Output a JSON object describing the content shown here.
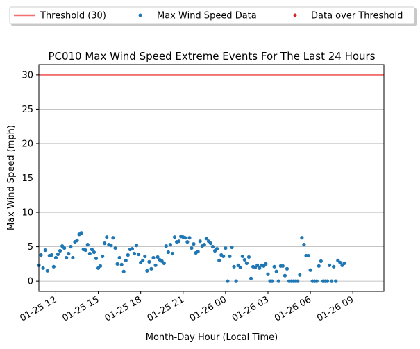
{
  "chart_data": {
    "type": "scatter",
    "title": "PC010 Max Wind Speed Extreme Events For The Last 24 Hours",
    "xlabel": "Month-Day Hour (Local Time)",
    "ylabel": "Max Wind Speed (mph)",
    "x_unit": "hours",
    "x_range": [
      10.8,
      35.2
    ],
    "ylim": [
      -1.5,
      31.5
    ],
    "xtick_hours": [
      12,
      15,
      18,
      21,
      24,
      27,
      30,
      33
    ],
    "xtick_labels": [
      "01-25 12",
      "01-25 15",
      "01-25 18",
      "01-25 21",
      "01-26 00",
      "01-26 03",
      "01-26 06",
      "01-26 09"
    ],
    "ytick_values": [
      0,
      5,
      10,
      15,
      20,
      25,
      30
    ],
    "ytick_labels": [
      "0",
      "5",
      "10",
      "15",
      "20",
      "25",
      "30"
    ],
    "grid": "horizontal",
    "legend_position": "top",
    "threshold": {
      "name": "Threshold (30)",
      "value": 30,
      "color": "#f07070"
    },
    "series": [
      {
        "name": "Max Wind Speed Data",
        "color": "#1f77b4",
        "points": [
          [
            10.8,
            2.3
          ],
          [
            10.95,
            3.8
          ],
          [
            11.1,
            1.9
          ],
          [
            11.25,
            4.5
          ],
          [
            11.4,
            1.5
          ],
          [
            11.55,
            3.7
          ],
          [
            11.7,
            3.8
          ],
          [
            11.85,
            2.1
          ],
          [
            12.0,
            3.4
          ],
          [
            12.15,
            3.9
          ],
          [
            12.3,
            4.4
          ],
          [
            12.45,
            5.1
          ],
          [
            12.6,
            4.8
          ],
          [
            12.75,
            3.4
          ],
          [
            12.9,
            4.0
          ],
          [
            13.05,
            5.0
          ],
          [
            13.2,
            3.4
          ],
          [
            13.35,
            5.7
          ],
          [
            13.5,
            5.9
          ],
          [
            13.65,
            6.8
          ],
          [
            13.8,
            7.0
          ],
          [
            13.95,
            4.6
          ],
          [
            14.1,
            4.5
          ],
          [
            14.25,
            5.3
          ],
          [
            14.4,
            4.0
          ],
          [
            14.55,
            4.6
          ],
          [
            14.7,
            4.2
          ],
          [
            14.85,
            3.3
          ],
          [
            15.0,
            1.9
          ],
          [
            15.15,
            2.2
          ],
          [
            15.3,
            3.6
          ],
          [
            15.45,
            5.5
          ],
          [
            15.6,
            6.4
          ],
          [
            15.75,
            5.3
          ],
          [
            15.9,
            5.2
          ],
          [
            16.05,
            6.3
          ],
          [
            16.2,
            4.8
          ],
          [
            16.35,
            2.5
          ],
          [
            16.5,
            3.4
          ],
          [
            16.65,
            2.4
          ],
          [
            16.8,
            1.4
          ],
          [
            16.95,
            3.0
          ],
          [
            17.1,
            3.8
          ],
          [
            17.25,
            4.6
          ],
          [
            17.4,
            4.7
          ],
          [
            17.55,
            4.0
          ],
          [
            17.7,
            5.2
          ],
          [
            17.85,
            3.9
          ],
          [
            18.0,
            2.7
          ],
          [
            18.15,
            3.0
          ],
          [
            18.3,
            3.6
          ],
          [
            18.45,
            1.5
          ],
          [
            18.6,
            2.8
          ],
          [
            18.75,
            1.8
          ],
          [
            18.9,
            3.4
          ],
          [
            19.05,
            2.3
          ],
          [
            19.2,
            3.5
          ],
          [
            19.35,
            3.1
          ],
          [
            19.5,
            2.9
          ],
          [
            19.65,
            2.6
          ],
          [
            19.8,
            5.1
          ],
          [
            19.95,
            4.2
          ],
          [
            20.1,
            5.3
          ],
          [
            20.25,
            4.0
          ],
          [
            20.4,
            6.4
          ],
          [
            20.55,
            5.7
          ],
          [
            20.7,
            5.8
          ],
          [
            20.85,
            6.5
          ],
          [
            21.0,
            6.4
          ],
          [
            21.15,
            6.3
          ],
          [
            21.3,
            5.7
          ],
          [
            21.45,
            6.3
          ],
          [
            21.6,
            4.8
          ],
          [
            21.75,
            5.4
          ],
          [
            21.9,
            4.1
          ],
          [
            22.05,
            4.3
          ],
          [
            22.2,
            5.8
          ],
          [
            22.35,
            5.1
          ],
          [
            22.5,
            5.3
          ],
          [
            22.65,
            6.2
          ],
          [
            22.8,
            5.8
          ],
          [
            22.95,
            5.5
          ],
          [
            23.1,
            5.0
          ],
          [
            23.25,
            4.4
          ],
          [
            23.4,
            4.7
          ],
          [
            23.55,
            3.0
          ],
          [
            23.7,
            3.8
          ],
          [
            23.85,
            3.6
          ],
          [
            24.0,
            4.8
          ],
          [
            24.15,
            0.0
          ],
          [
            24.3,
            3.6
          ],
          [
            24.45,
            4.9
          ],
          [
            24.6,
            2.1
          ],
          [
            24.75,
            0.0
          ],
          [
            24.9,
            2.3
          ],
          [
            25.05,
            2.0
          ],
          [
            25.2,
            3.6
          ],
          [
            25.35,
            3.1
          ],
          [
            25.5,
            2.6
          ],
          [
            25.65,
            3.5
          ],
          [
            25.8,
            0.4
          ],
          [
            25.95,
            2.1
          ],
          [
            26.1,
            2.0
          ],
          [
            26.25,
            2.3
          ],
          [
            26.4,
            1.9
          ],
          [
            26.55,
            2.3
          ],
          [
            26.7,
            2.2
          ],
          [
            26.85,
            2.5
          ],
          [
            27.0,
            1.0
          ],
          [
            27.15,
            0.0
          ],
          [
            27.3,
            0.0
          ],
          [
            27.45,
            2.1
          ],
          [
            27.6,
            1.4
          ],
          [
            27.75,
            0.0
          ],
          [
            27.9,
            2.2
          ],
          [
            28.05,
            2.2
          ],
          [
            28.2,
            0.8
          ],
          [
            28.35,
            1.8
          ],
          [
            28.5,
            0.0
          ],
          [
            28.65,
            0.0
          ],
          [
            28.8,
            0.0
          ],
          [
            28.95,
            0.0
          ],
          [
            29.1,
            0.0
          ],
          [
            29.25,
            0.9
          ],
          [
            29.4,
            6.3
          ],
          [
            29.55,
            5.3
          ],
          [
            29.7,
            3.7
          ],
          [
            29.85,
            3.7
          ],
          [
            30.0,
            1.6
          ],
          [
            30.15,
            0.0
          ],
          [
            30.3,
            0.0
          ],
          [
            30.45,
            0.0
          ],
          [
            30.6,
            2.2
          ],
          [
            30.75,
            2.9
          ],
          [
            30.9,
            0.0
          ],
          [
            31.05,
            0.0
          ],
          [
            31.2,
            0.0
          ],
          [
            31.35,
            2.3
          ],
          [
            31.5,
            0.0
          ],
          [
            31.65,
            2.1
          ],
          [
            31.8,
            0.0
          ],
          [
            31.95,
            3.0
          ],
          [
            32.1,
            2.7
          ],
          [
            32.25,
            2.3
          ],
          [
            32.4,
            2.6
          ]
        ]
      },
      {
        "name": "Data over Threshold",
        "color": "#d62728",
        "points": []
      }
    ]
  }
}
